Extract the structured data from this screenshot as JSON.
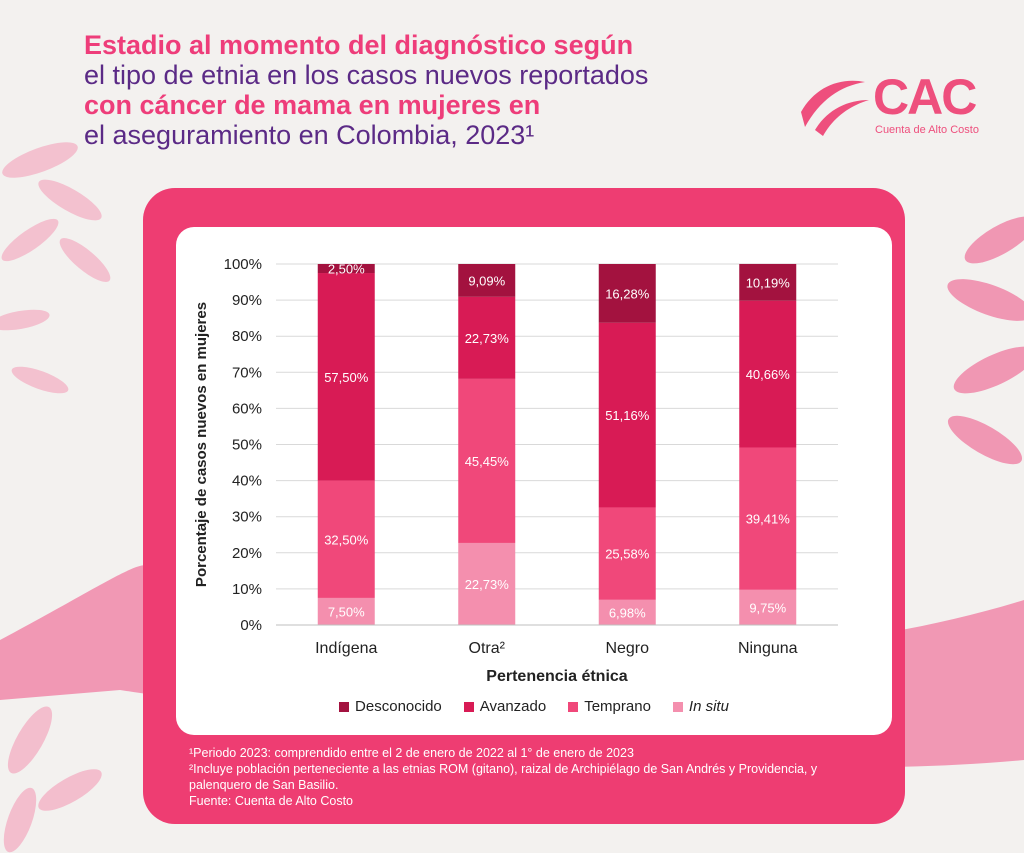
{
  "title": {
    "line1": "Estadio al momento del diagnóstico según",
    "line2": "el tipo de etnia en los casos nuevos reportados",
    "line3": "con cáncer de mama en mujeres en",
    "line4": "el aseguramiento en Colombia, 2023¹"
  },
  "logo": {
    "text": "CAC",
    "subtitle": "Cuenta de Alto Costo"
  },
  "colors": {
    "desconocido": "#a3123f",
    "avanzado": "#d81b55",
    "temprano": "#f0487a",
    "in_situ": "#f48fae",
    "frame": "#ee3d72",
    "title_highlight": "#ee3d7a",
    "title_plain": "#5b2a86"
  },
  "chart_data": {
    "type": "bar",
    "stacked": true,
    "categories": [
      "Indígena",
      "Otra²",
      "Negro",
      "Ninguna"
    ],
    "series": [
      {
        "name": "In situ",
        "values": [
          7.5,
          22.73,
          6.98,
          9.75
        ],
        "labels": [
          "7,50%",
          "22,73%",
          "6,98%",
          "9,75%"
        ]
      },
      {
        "name": "Temprano",
        "values": [
          32.5,
          45.45,
          25.58,
          39.41
        ],
        "labels": [
          "32,50%",
          "45,45%",
          "25,58%",
          "39,41%"
        ]
      },
      {
        "name": "Avanzado",
        "values": [
          57.5,
          22.73,
          51.16,
          40.66
        ],
        "labels": [
          "57,50%",
          "22,73%",
          "51,16%",
          "40,66%"
        ]
      },
      {
        "name": "Desconocido",
        "values": [
          2.5,
          9.09,
          16.28,
          10.19
        ],
        "labels": [
          "2,50%",
          "9,09%",
          "16,28%",
          "10,19%"
        ]
      }
    ],
    "yticks": [
      "0%",
      "10%",
      "20%",
      "30%",
      "40%",
      "50%",
      "60%",
      "70%",
      "80%",
      "90%",
      "100%"
    ],
    "ylim": [
      0,
      100
    ],
    "xlabel": "Pertenencia étnica",
    "ylabel": "Porcentaje de casos nuevos en mujeres",
    "grid": true,
    "legend_position": "bottom"
  },
  "legend": [
    {
      "label": "Desconocido",
      "color": "#a3123f"
    },
    {
      "label": "Avanzado",
      "color": "#d81b55"
    },
    {
      "label": "Temprano",
      "color": "#f0487a"
    },
    {
      "label": "In situ",
      "color": "#f48fae"
    }
  ],
  "notes": {
    "note1": "¹Periodo 2023: comprendido entre el 2 de enero de 2022 al 1° de enero de 2023",
    "note2": "²Incluye población perteneciente a las etnias ROM (gitano), raizal de Archipiélago de San Andrés y Providencia, y palenquero de San Basilio.",
    "source": "Fuente: Cuenta de Alto Costo"
  }
}
